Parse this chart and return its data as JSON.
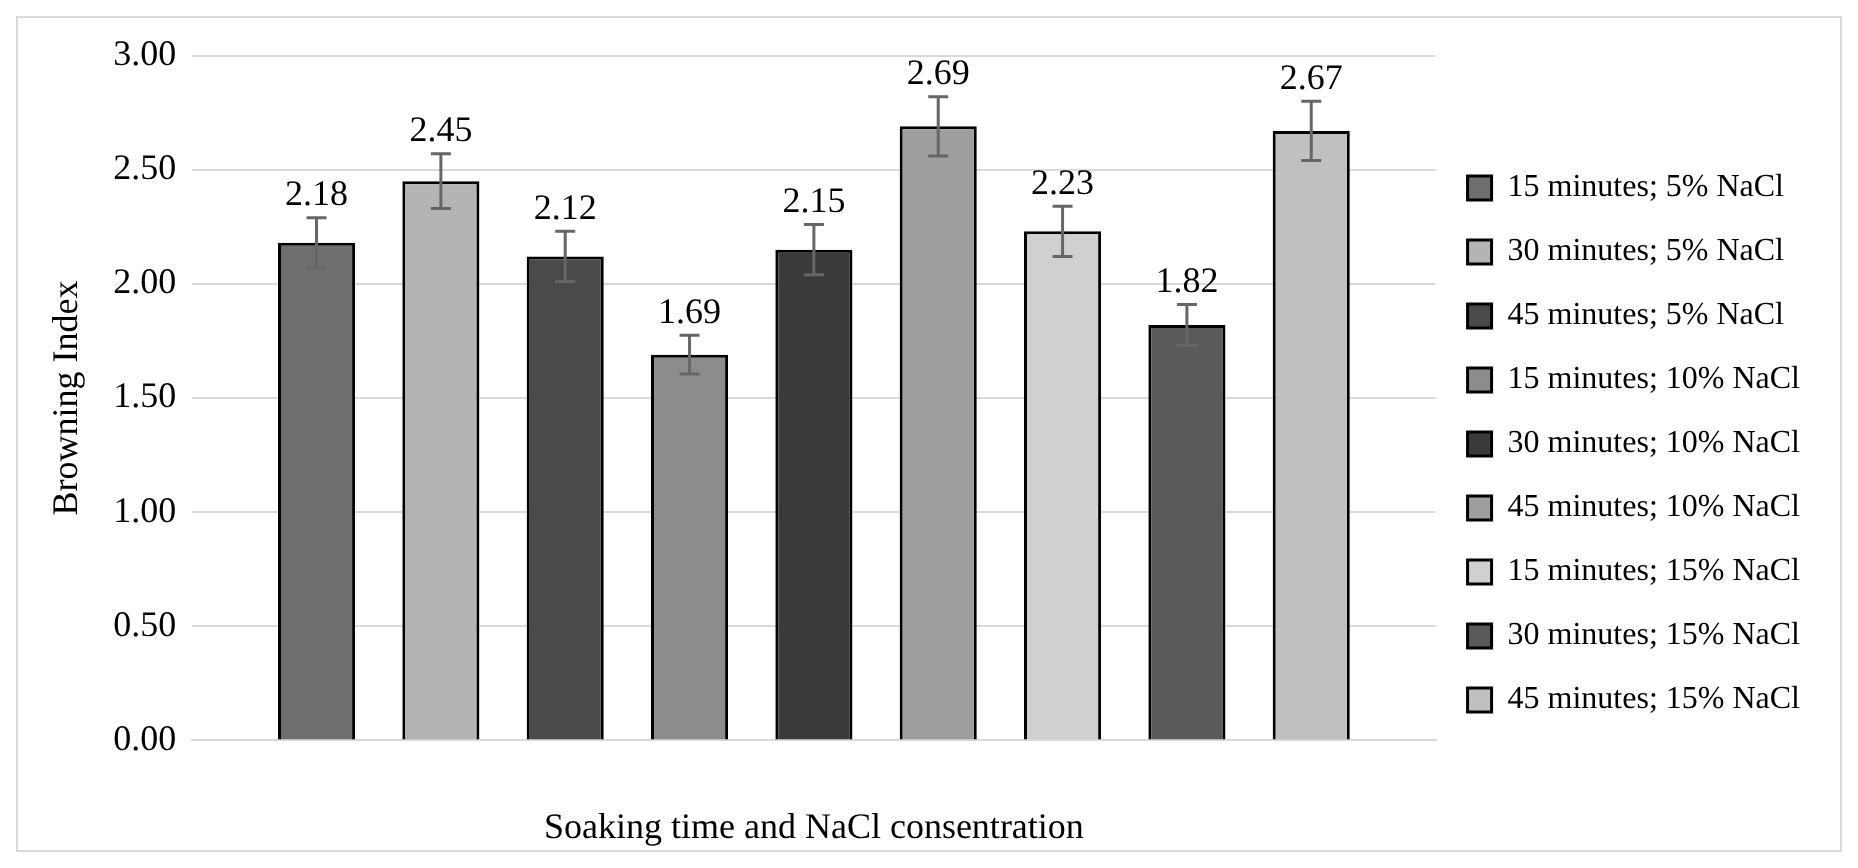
{
  "chart_data": {
    "type": "bar",
    "xlabel": "Soaking time and NaCl consentration",
    "ylabel": "Browning Index",
    "categories": [
      null
    ],
    "series": [
      {
        "name": "15 minutes; 5% NaCl",
        "color": "#6e6e6e",
        "values": [
          2.18
        ],
        "errors": [
          0.11
        ]
      },
      {
        "name": "30 minutes; 5% NaCl",
        "color": "#b4b4b4",
        "values": [
          2.45
        ],
        "errors": [
          0.12
        ]
      },
      {
        "name": "45 minutes; 5% NaCl",
        "color": "#4a4a4a",
        "values": [
          2.12
        ],
        "errors": [
          0.11
        ]
      },
      {
        "name": "15 minutes; 10% NaCl",
        "color": "#8c8c8c",
        "values": [
          1.69
        ],
        "errors": [
          0.085
        ]
      },
      {
        "name": "30 minutes; 10% NaCl",
        "color": "#3a3a3a",
        "values": [
          2.15
        ],
        "errors": [
          0.11
        ]
      },
      {
        "name": "45 minutes; 10% NaCl",
        "color": "#9e9e9e",
        "values": [
          2.69
        ],
        "errors": [
          0.13
        ]
      },
      {
        "name": "15 minutes; 15% NaCl",
        "color": "#d0d0d0",
        "values": [
          2.23
        ],
        "errors": [
          0.11
        ]
      },
      {
        "name": "30 minutes; 15% NaCl",
        "color": "#5a5a5a",
        "values": [
          1.82
        ],
        "errors": [
          0.09
        ]
      },
      {
        "name": "45 minutes; 15% NaCl",
        "color": "#c0c0c0",
        "values": [
          2.67
        ],
        "errors": [
          0.13
        ]
      }
    ],
    "ylim": [
      0,
      3
    ],
    "yticks": [
      {
        "value": 0,
        "label": "0.00"
      },
      {
        "value": 0.5,
        "label": "0.50"
      },
      {
        "value": 1,
        "label": "1.00"
      },
      {
        "value": 1.5,
        "label": "1.50"
      },
      {
        "value": 2,
        "label": "2.00"
      },
      {
        "value": 2.5,
        "label": "2.50"
      },
      {
        "value": 3,
        "label": "3.00"
      }
    ],
    "grid": "y",
    "legend": "right",
    "data_labels": true
  }
}
